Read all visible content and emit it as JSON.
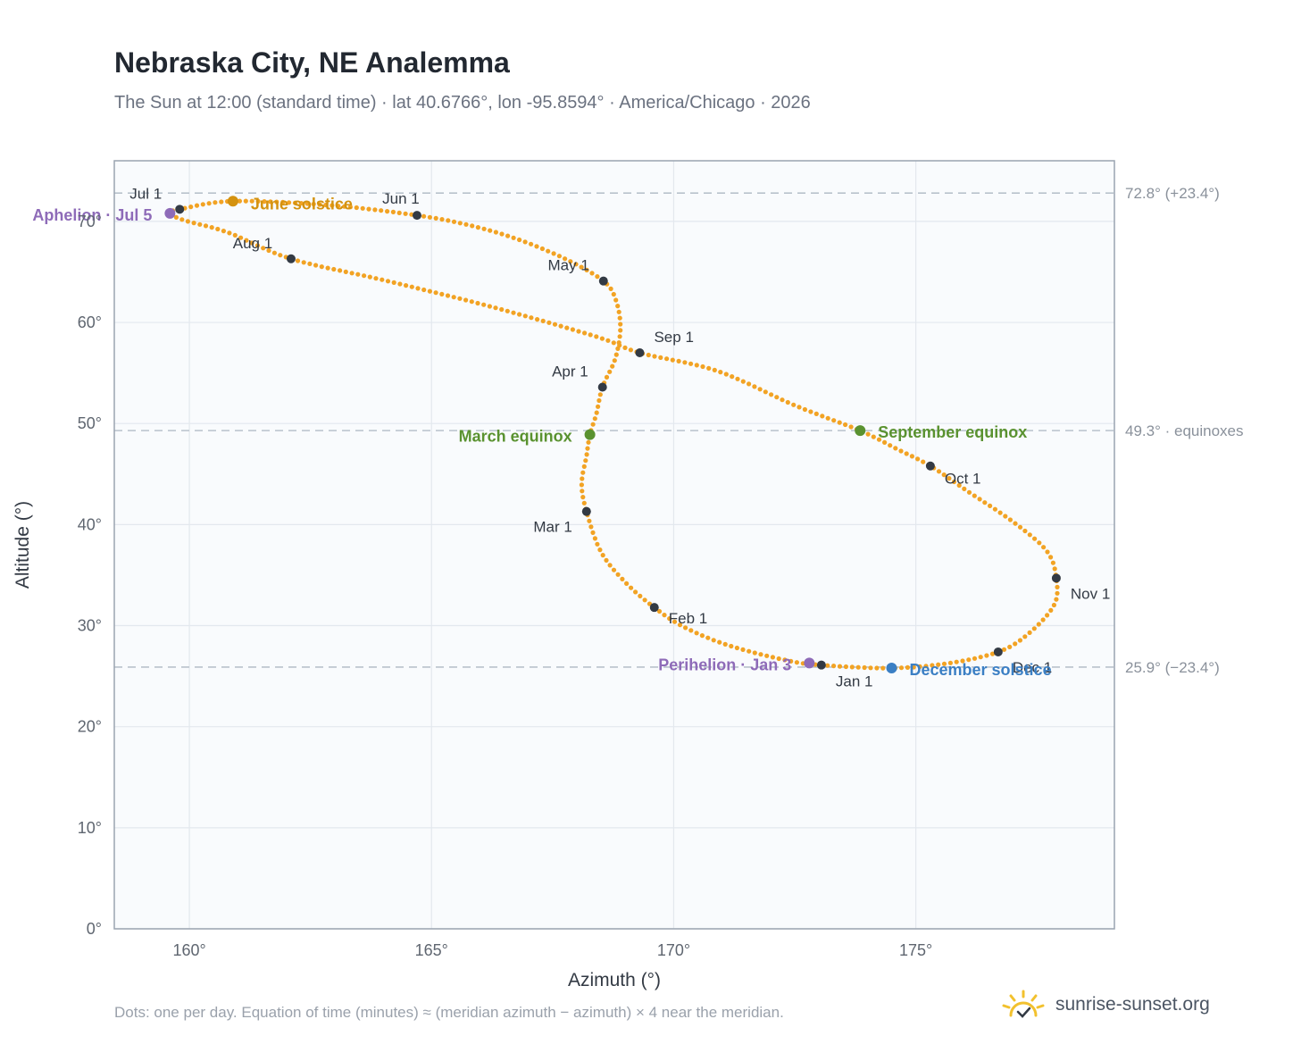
{
  "title": "Nebraska City, NE Analemma",
  "subtitle": "The Sun at 12:00 (standard time) · lat 40.6766°, lon -95.8594° · America/Chicago · 2026",
  "footnote": "Dots: one per day. Equation of time (minutes) ≈ (meridian azimuth − azimuth) × 4 near the meridian.",
  "brand": {
    "name": "sunrise-sunset.org",
    "logo_icon": "sun-check-icon",
    "logo_color": "#f2c12e"
  },
  "colors": {
    "curve": "#f2a324",
    "month_marker": "#333a44",
    "aphelion": "#8e6bb8",
    "perihelion": "#8e6bb8",
    "june_solstice": "#d4920f",
    "december_solstice": "#3b7fc4",
    "equinox": "#5a9230",
    "reference_line": "#b9c2cc",
    "plot_background": "#f9fbfd",
    "grid": "#e3e8ee"
  },
  "chart_data": {
    "type": "scatter",
    "xlabel": "Azimuth (°)",
    "ylabel": "Altitude (°)",
    "xlim": [
      158.45,
      179.1
    ],
    "ylim": [
      0,
      76
    ],
    "x_ticks": [
      {
        "value": 160,
        "label": "160°"
      },
      {
        "value": 165,
        "label": "165°"
      },
      {
        "value": 170,
        "label": "170°"
      },
      {
        "value": 175,
        "label": "175°"
      }
    ],
    "y_ticks": [
      {
        "value": 0,
        "label": "0°"
      },
      {
        "value": 10,
        "label": "10°"
      },
      {
        "value": 20,
        "label": "20°"
      },
      {
        "value": 30,
        "label": "30°"
      },
      {
        "value": 40,
        "label": "40°"
      },
      {
        "value": 50,
        "label": "50°"
      },
      {
        "value": 60,
        "label": "60°"
      },
      {
        "value": 70,
        "label": "70°"
      }
    ],
    "grid": true,
    "reference_lines": [
      {
        "value": 72.8,
        "label": "72.8° (+23.4°)"
      },
      {
        "value": 49.3,
        "label": "49.3° · equinoxes"
      },
      {
        "value": 25.9,
        "label": "25.9° (−23.4°)"
      }
    ],
    "analemma_points": [
      [
        173.05,
        26.1
      ],
      [
        172.3,
        26.6
      ],
      [
        171.1,
        28.1
      ],
      [
        170.2,
        29.9
      ],
      [
        169.6,
        31.8
      ],
      [
        169.0,
        34.3
      ],
      [
        168.5,
        37.3
      ],
      [
        168.2,
        41.3
      ],
      [
        168.1,
        44.0
      ],
      [
        168.2,
        46.8
      ],
      [
        168.27,
        48.9
      ],
      [
        168.4,
        50.9
      ],
      [
        168.53,
        53.6
      ],
      [
        168.8,
        56.5
      ],
      [
        168.9,
        59.6
      ],
      [
        168.8,
        62.3
      ],
      [
        168.55,
        64.1
      ],
      [
        167.8,
        66.2
      ],
      [
        166.8,
        68.2
      ],
      [
        165.8,
        69.6
      ],
      [
        164.7,
        70.6
      ],
      [
        162.9,
        71.6
      ],
      [
        160.9,
        72.0
      ],
      [
        159.8,
        71.2
      ],
      [
        159.6,
        70.8
      ],
      [
        159.9,
        70.1
      ],
      [
        160.8,
        68.9
      ],
      [
        162.1,
        66.3
      ],
      [
        164.0,
        64.2
      ],
      [
        166.2,
        61.6
      ],
      [
        168.4,
        58.6
      ],
      [
        169.3,
        57.0
      ],
      [
        170.9,
        55.2
      ],
      [
        172.5,
        51.8
      ],
      [
        173.85,
        49.3
      ],
      [
        174.6,
        47.5
      ],
      [
        175.3,
        45.8
      ],
      [
        176.1,
        43.2
      ],
      [
        177.0,
        40.3
      ],
      [
        177.7,
        37.4
      ],
      [
        177.9,
        34.7
      ],
      [
        177.85,
        32.0
      ],
      [
        177.3,
        29.1
      ],
      [
        176.7,
        27.4
      ],
      [
        175.7,
        26.3
      ],
      [
        174.5,
        25.8
      ],
      [
        173.05,
        26.1
      ]
    ],
    "month_markers": [
      {
        "label": "Jan 1",
        "x": 173.05,
        "y": 26.1
      },
      {
        "label": "Feb 1",
        "x": 169.6,
        "y": 31.8
      },
      {
        "label": "Mar 1",
        "x": 168.2,
        "y": 41.3
      },
      {
        "label": "Apr 1",
        "x": 168.53,
        "y": 53.6
      },
      {
        "label": "May 1",
        "x": 168.55,
        "y": 64.1
      },
      {
        "label": "Jun 1",
        "x": 164.7,
        "y": 70.6
      },
      {
        "label": "Jul 1",
        "x": 159.8,
        "y": 71.2
      },
      {
        "label": "Aug 1",
        "x": 162.1,
        "y": 66.3
      },
      {
        "label": "Sep 1",
        "x": 169.3,
        "y": 57.0
      },
      {
        "label": "Oct 1",
        "x": 175.3,
        "y": 45.8
      },
      {
        "label": "Nov 1",
        "x": 177.9,
        "y": 34.7
      },
      {
        "label": "Dec 1",
        "x": 176.7,
        "y": 27.4
      }
    ],
    "events": [
      {
        "label": "Aphelion · Jul 5",
        "x": 159.6,
        "y": 70.8,
        "color_key": "aphelion"
      },
      {
        "label": "June solstice",
        "x": 160.9,
        "y": 72.0,
        "color_key": "june_solstice"
      },
      {
        "label": "March equinox",
        "x": 168.27,
        "y": 48.9,
        "color_key": "equinox"
      },
      {
        "label": "September equinox",
        "x": 173.85,
        "y": 49.3,
        "color_key": "equinox"
      },
      {
        "label": "Perihelion · Jan 3",
        "x": 172.8,
        "y": 26.3,
        "color_key": "perihelion"
      },
      {
        "label": "December solstice",
        "x": 174.5,
        "y": 25.8,
        "color_key": "december_solstice"
      }
    ]
  }
}
